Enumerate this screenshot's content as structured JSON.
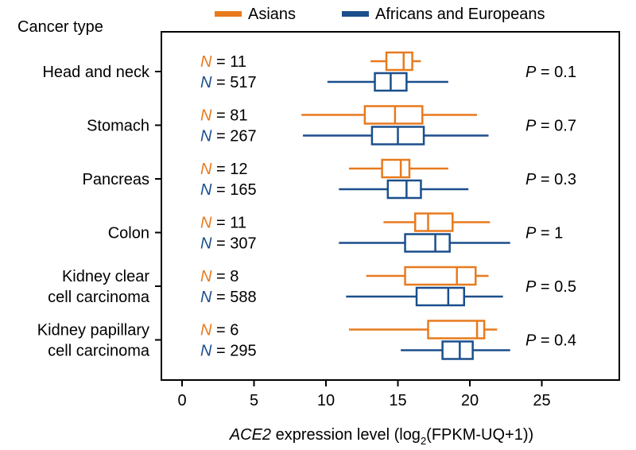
{
  "colors": {
    "asian": "#E87A1E",
    "afr_eur": "#1B4F8C"
  },
  "chart_data": {
    "type": "boxplot",
    "orientation": "horizontal",
    "y_header": "Cancer type",
    "xlabel_italic": "ACE2",
    "xlabel_text": " expression level (log",
    "xlabel_sub": "2",
    "xlabel_tail": "(FPKM-UQ+1))",
    "xlim": [
      -2,
      30
    ],
    "xticks": [
      0,
      5,
      10,
      15,
      20,
      25
    ],
    "legend": [
      {
        "name": "Asians",
        "color": "#E87A1E"
      },
      {
        "name": "Africans and Europeans",
        "color": "#1B4F8C"
      }
    ],
    "groups": [
      {
        "label": [
          "Head and neck"
        ],
        "p": "0.1",
        "series": [
          {
            "name": "Asians",
            "n": "11",
            "whisker": [
              13.1,
              16.6
            ],
            "q1": 14.2,
            "median": 15.4,
            "q3": 16.0
          },
          {
            "name": "Africans and Europeans",
            "n": "517",
            "whisker": [
              10.1,
              18.5
            ],
            "q1": 13.4,
            "median": 14.5,
            "q3": 15.6
          }
        ]
      },
      {
        "label": [
          "Stomach"
        ],
        "p": "0.7",
        "series": [
          {
            "name": "Asians",
            "n": "81",
            "whisker": [
              8.3,
              20.5
            ],
            "q1": 12.7,
            "median": 14.8,
            "q3": 16.7
          },
          {
            "name": "Africans and Europeans",
            "n": "267",
            "whisker": [
              8.4,
              21.3
            ],
            "q1": 13.2,
            "median": 15.0,
            "q3": 16.8
          }
        ]
      },
      {
        "label": [
          "Pancreas"
        ],
        "p": "0.3",
        "series": [
          {
            "name": "Asians",
            "n": "12",
            "whisker": [
              11.6,
              18.5
            ],
            "q1": 13.9,
            "median": 15.2,
            "q3": 15.8
          },
          {
            "name": "Africans and Europeans",
            "n": "165",
            "whisker": [
              10.9,
              19.9
            ],
            "q1": 14.3,
            "median": 15.6,
            "q3": 16.6
          }
        ]
      },
      {
        "label": [
          "Colon"
        ],
        "p": "1",
        "series": [
          {
            "name": "Asians",
            "n": "11",
            "whisker": [
              14.0,
              21.4
            ],
            "q1": 16.2,
            "median": 17.1,
            "q3": 18.8
          },
          {
            "name": "Africans and Europeans",
            "n": "307",
            "whisker": [
              10.9,
              22.8
            ],
            "q1": 15.5,
            "median": 17.6,
            "q3": 18.6
          }
        ]
      },
      {
        "label": [
          "Kidney clear",
          "cell carcinoma"
        ],
        "p": "0.5",
        "series": [
          {
            "name": "Asians",
            "n": "8",
            "whisker": [
              12.8,
              21.3
            ],
            "q1": 15.5,
            "median": 19.1,
            "q3": 20.4
          },
          {
            "name": "Africans and Europeans",
            "n": "588",
            "whisker": [
              11.4,
              22.3
            ],
            "q1": 16.3,
            "median": 18.5,
            "q3": 19.6
          }
        ]
      },
      {
        "label": [
          "Kidney papillary",
          "cell carcinoma"
        ],
        "p": "0.4",
        "series": [
          {
            "name": "Asians",
            "n": "6",
            "whisker": [
              11.6,
              21.9
            ],
            "q1": 17.1,
            "median": 20.5,
            "q3": 21.0
          },
          {
            "name": "Africans and Europeans",
            "n": "295",
            "whisker": [
              15.2,
              22.8
            ],
            "q1": 18.1,
            "median": 19.3,
            "q3": 20.2
          }
        ]
      }
    ]
  }
}
